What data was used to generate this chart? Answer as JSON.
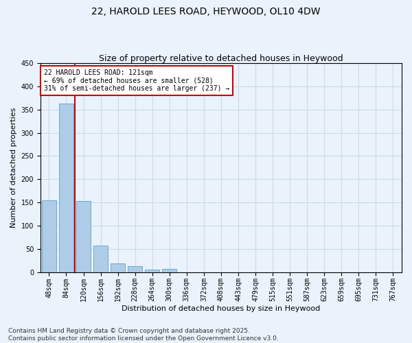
{
  "title": "22, HAROLD LEES ROAD, HEYWOOD, OL10 4DW",
  "subtitle": "Size of property relative to detached houses in Heywood",
  "xlabel": "Distribution of detached houses by size in Heywood",
  "ylabel": "Number of detached properties",
  "categories": [
    "48sqm",
    "84sqm",
    "120sqm",
    "156sqm",
    "192sqm",
    "228sqm",
    "264sqm",
    "300sqm",
    "336sqm",
    "372sqm",
    "408sqm",
    "443sqm",
    "479sqm",
    "515sqm",
    "551sqm",
    "587sqm",
    "623sqm",
    "659sqm",
    "695sqm",
    "731sqm",
    "767sqm"
  ],
  "values": [
    155,
    363,
    153,
    57,
    19,
    13,
    5,
    6,
    0,
    0,
    0,
    0,
    0,
    0,
    0,
    0,
    0,
    0,
    0,
    0,
    0
  ],
  "bar_color": "#aecce8",
  "bar_edge_color": "#6aaad4",
  "grid_color": "#ccdaea",
  "background_color": "#eaf2fb",
  "property_line_color": "#cc0000",
  "property_line_x": 1.5,
  "annotation_text": "22 HAROLD LEES ROAD: 121sqm\n← 69% of detached houses are smaller (528)\n31% of semi-detached houses are larger (237) →",
  "annotation_box_color": "#ffffff",
  "annotation_box_edge": "#cc0000",
  "ylim": [
    0,
    450
  ],
  "yticks": [
    0,
    50,
    100,
    150,
    200,
    250,
    300,
    350,
    400,
    450
  ],
  "footnote": "Contains HM Land Registry data © Crown copyright and database right 2025.\nContains public sector information licensed under the Open Government Licence v3.0.",
  "title_fontsize": 10,
  "subtitle_fontsize": 9,
  "xlabel_fontsize": 8,
  "ylabel_fontsize": 8,
  "tick_fontsize": 7,
  "annot_fontsize": 7,
  "footnote_fontsize": 6.5
}
